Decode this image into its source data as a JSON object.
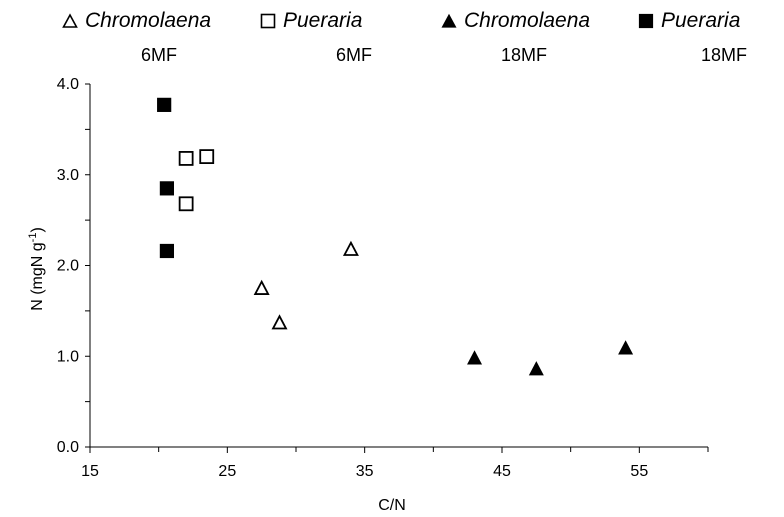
{
  "chart_data": {
    "type": "scatter",
    "title": "",
    "xlabel": "C/N",
    "ylabel": "N (mgN g",
    "ylabel_sup": "-1",
    "ylabel_end": ")",
    "xlim": [
      15,
      60
    ],
    "ylim": [
      0,
      4
    ],
    "x_ticks": [
      15,
      25,
      35,
      45,
      55
    ],
    "x_tick_labels": [
      "15",
      "25",
      "35",
      "45",
      "55"
    ],
    "y_ticks": [
      0,
      1,
      2,
      3,
      4
    ],
    "y_tick_labels": [
      "0.0",
      "1.0",
      "2.0",
      "3.0",
      "4.0"
    ],
    "grid": false,
    "legend_position": "top",
    "series": [
      {
        "name": "Chromolaena",
        "sublabel": "6MF",
        "marker": "triangle-open",
        "x": [
          27.5,
          28.8,
          34.0
        ],
        "y": [
          1.75,
          1.37,
          2.18
        ]
      },
      {
        "name": "Pueraria",
        "sublabel": "6MF",
        "marker": "square-open",
        "x": [
          22.0,
          22.0,
          23.5
        ],
        "y": [
          3.18,
          2.68,
          3.2
        ]
      },
      {
        "name": "Chromolaena",
        "sublabel": "18MF",
        "marker": "triangle-filled",
        "x": [
          43.0,
          47.5,
          54.0
        ],
        "y": [
          0.98,
          0.86,
          1.09
        ]
      },
      {
        "name": "Pueraria",
        "sublabel": "18MF",
        "marker": "square-filled",
        "x": [
          20.4,
          20.6,
          20.6
        ],
        "y": [
          3.77,
          2.85,
          2.16
        ]
      }
    ]
  }
}
